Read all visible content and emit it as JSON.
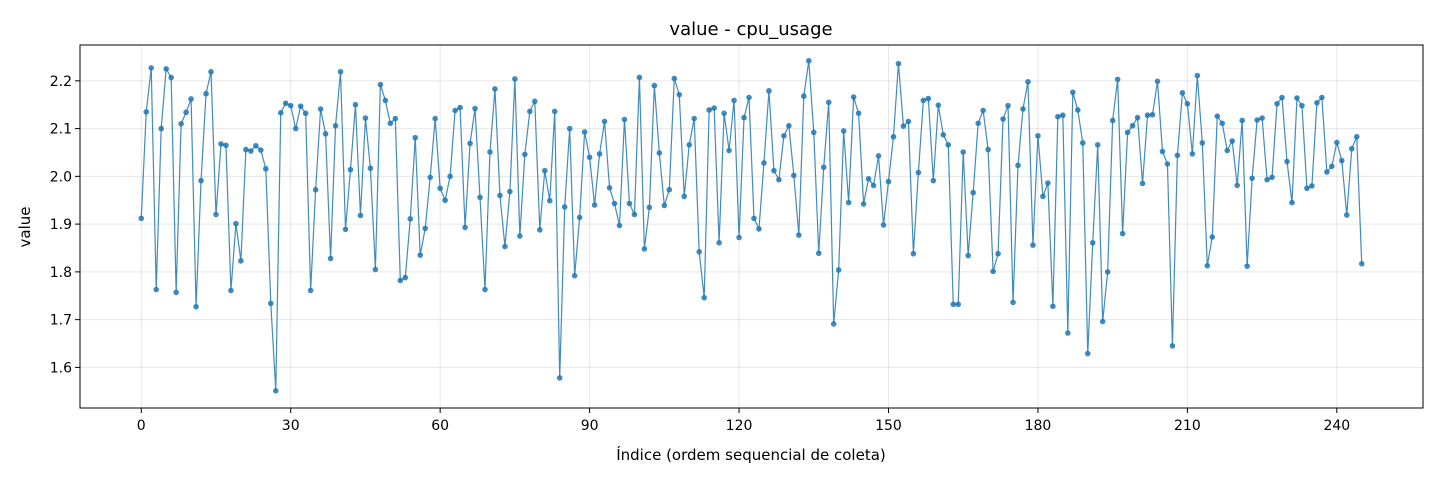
{
  "chart_data": {
    "type": "line",
    "title": "value - cpu_usage",
    "xlabel": "Índice (ordem sequencial de coleta)",
    "ylabel": "value",
    "xlim": [
      -12.3,
      257.3
    ],
    "ylim": [
      1.515,
      2.275
    ],
    "xticks": [
      0,
      30,
      60,
      90,
      120,
      150,
      180,
      210,
      240
    ],
    "yticks": [
      1.6,
      1.7,
      1.8,
      1.9,
      2.0,
      2.1,
      2.2
    ],
    "grid": true,
    "markers": true,
    "color": "#1f77b4",
    "series": [
      {
        "values": [
          1.912,
          2.135,
          2.227,
          1.763,
          2.1,
          2.225,
          2.207,
          1.757,
          2.11,
          2.134,
          2.162,
          1.727,
          1.991,
          2.173,
          2.219,
          1.92,
          2.068,
          2.065,
          1.761,
          1.901,
          1.823,
          2.056,
          2.053,
          2.064,
          2.055,
          2.016,
          1.734,
          1.551,
          2.133,
          2.153,
          2.148,
          2.1,
          2.147,
          2.132,
          1.761,
          1.972,
          2.141,
          2.089,
          1.828,
          2.106,
          2.219,
          1.889,
          2.014,
          2.15,
          1.918,
          2.122,
          2.017,
          1.805,
          2.192,
          2.159,
          2.111,
          2.121,
          1.782,
          1.788,
          1.911,
          2.081,
          1.835,
          1.891,
          1.998,
          2.121,
          1.975,
          1.95,
          2.0,
          2.138,
          2.144,
          1.893,
          2.069,
          2.142,
          1.956,
          1.763,
          2.051,
          2.183,
          1.96,
          1.853,
          1.968,
          2.204,
          1.875,
          2.046,
          2.136,
          2.157,
          1.888,
          2.012,
          1.949,
          2.136,
          1.578,
          1.936,
          2.1,
          1.792,
          1.914,
          2.093,
          2.04,
          1.94,
          2.047,
          2.115,
          1.976,
          1.943,
          1.897,
          2.119,
          1.943,
          1.92,
          2.207,
          1.848,
          1.935,
          2.19,
          2.049,
          1.939,
          1.972,
          2.205,
          2.171,
          1.958,
          2.066,
          2.121,
          1.842,
          1.746,
          2.139,
          2.143,
          1.861,
          2.132,
          2.054,
          2.159,
          1.872,
          2.123,
          2.165,
          1.912,
          1.89,
          2.028,
          2.179,
          2.012,
          1.993,
          2.085,
          2.106,
          2.002,
          1.877,
          2.168,
          2.242,
          2.092,
          1.839,
          2.019,
          2.155,
          1.691,
          1.804,
          2.095,
          1.945,
          2.166,
          2.132,
          1.942,
          1.995,
          1.981,
          2.043,
          1.898,
          1.989,
          2.083,
          2.236,
          2.105,
          2.115,
          1.838,
          2.008,
          2.159,
          2.163,
          1.991,
          2.149,
          2.087,
          2.066,
          1.732,
          1.732,
          2.051,
          1.834,
          1.966,
          2.111,
          2.138,
          2.056,
          1.801,
          1.838,
          2.12,
          2.148,
          1.736,
          2.023,
          2.141,
          2.198,
          1.856,
          2.085,
          1.958,
          1.986,
          1.728,
          2.125,
          2.128,
          1.672,
          2.176,
          2.139,
          2.07,
          1.629,
          1.861,
          2.066,
          1.696,
          1.8,
          2.117,
          2.203,
          1.88,
          2.092,
          2.106,
          2.123,
          1.985,
          2.128,
          2.129,
          2.199,
          2.052,
          2.026,
          1.645,
          2.044,
          2.175,
          2.152,
          2.047,
          2.211,
          2.07,
          1.813,
          1.873,
          2.126,
          2.111,
          2.054,
          2.074,
          1.981,
          2.117,
          1.812,
          1.996,
          2.118,
          2.122,
          1.993,
          1.998,
          2.152,
          2.165,
          2.031,
          1.945,
          2.164,
          2.148,
          1.975,
          1.98,
          2.154,
          2.165,
          2.009,
          2.021,
          2.071,
          2.033,
          1.919,
          2.058,
          2.083,
          1.817
        ]
      }
    ]
  }
}
